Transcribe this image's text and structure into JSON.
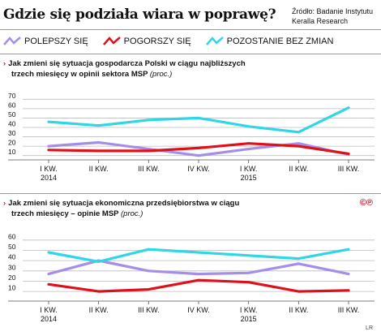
{
  "header": {
    "title": "Gdzie się podziała wiara w poprawę?",
    "source_line1": "Źródło: Badanie Instytutu",
    "source_line2": "Keralla Research"
  },
  "legend": [
    {
      "label": "POLEPSZY SIĘ",
      "color": "#a58ee8"
    },
    {
      "label": "POGORSZY SIĘ",
      "color": "#e0101a"
    },
    {
      "label": "POZOSTANIE BEZ ZMIAN",
      "color": "#2fd6e6"
    }
  ],
  "badge": "©℗",
  "credit": "LR",
  "chart_data": [
    {
      "type": "line",
      "title_line1": "Jak zmieni się sytuacja gospodarcza Polski w ciągu najbliższych",
      "title_line2": "trzech miesięcy w opinii sektora MSP",
      "title_unit": "(proc.)",
      "x": [
        "I KW.",
        "II KW.",
        "III KW.",
        "IV KW.",
        "I KW.",
        "II KW.",
        "III KW."
      ],
      "x_year_labels": [
        {
          "index": 0,
          "label": "2014"
        },
        {
          "index": 4,
          "label": "2015"
        }
      ],
      "y_ticks": [
        10,
        20,
        30,
        40,
        50,
        60,
        70
      ],
      "ylim": [
        8,
        72
      ],
      "grid": true,
      "series": [
        {
          "name": "POLEPSZY SIĘ",
          "color": "#a58ee8",
          "values": [
            20,
            24,
            17,
            10,
            17,
            23,
            11
          ]
        },
        {
          "name": "POGORSZY SIĘ",
          "color": "#e0101a",
          "values": [
            16,
            15,
            15,
            18,
            23,
            20,
            12
          ]
        },
        {
          "name": "POZOSTANIE BEZ ZMIAN",
          "color": "#2fd6e6",
          "values": [
            46,
            42,
            48,
            50,
            41,
            35,
            61
          ]
        }
      ]
    },
    {
      "type": "line",
      "title_line1": "Jak zmieni się sytuacja ekonomiczna przedsiębiorstwa w ciągu",
      "title_line2": "trzech miesięcy – opinie MSP",
      "title_unit": "(proc.)",
      "x": [
        "I KW.",
        "II KW.",
        "III KW.",
        "IV KW.",
        "I KW.",
        "II KW.",
        "III KW."
      ],
      "x_year_labels": [
        {
          "index": 0,
          "label": "2014"
        },
        {
          "index": 4,
          "label": "2015"
        }
      ],
      "y_ticks": [
        10,
        20,
        30,
        40,
        50,
        60
      ],
      "ylim": [
        3,
        63
      ],
      "grid": true,
      "series": [
        {
          "name": "POLEPSZY SIĘ",
          "color": "#a58ee8",
          "values": [
            27,
            40,
            30,
            27,
            28,
            37,
            27
          ]
        },
        {
          "name": "POGORSZY SIĘ",
          "color": "#e0101a",
          "values": [
            17,
            10,
            12,
            21,
            19,
            10,
            11
          ]
        },
        {
          "name": "POZOSTANIE BEZ ZMIAN",
          "color": "#2fd6e6",
          "values": [
            48,
            39,
            51,
            48,
            45,
            42,
            51
          ]
        }
      ]
    }
  ]
}
